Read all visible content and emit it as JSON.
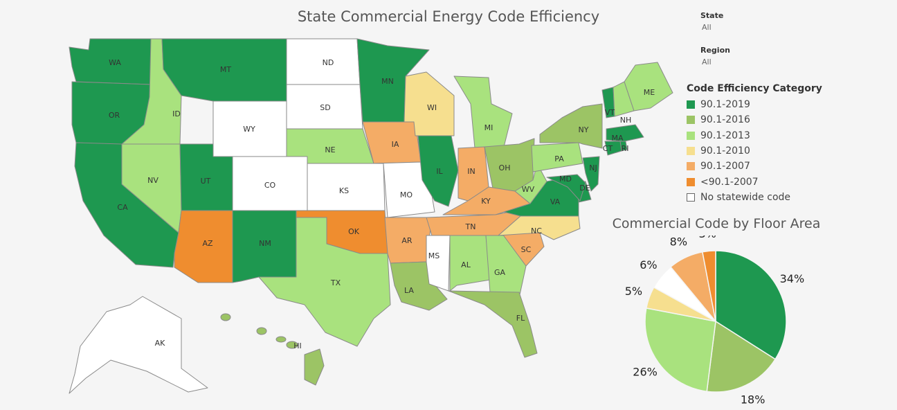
{
  "map_title": "State Commercial Energy Code Efficiency",
  "filters": [
    {
      "label": "State",
      "value": "All"
    },
    {
      "label": "Region",
      "value": "All"
    }
  ],
  "legend": {
    "title": "Code Efficiency Category",
    "items": [
      {
        "label": "90.1-2019",
        "color": "#1e9850"
      },
      {
        "label": "90.1-2016",
        "color": "#9cc465"
      },
      {
        "label": "90.1-2013",
        "color": "#a9e27e"
      },
      {
        "label": "90.1-2010",
        "color": "#f6df8f"
      },
      {
        "label": "90.1-2007",
        "color": "#f4ac66"
      },
      {
        "label": "<90.1-2007",
        "color": "#ef8d2f"
      },
      {
        "label": "No statewide code",
        "color": "#ffffff"
      }
    ]
  },
  "states": [
    {
      "abbr": "WA",
      "category": "90.1-2019"
    },
    {
      "abbr": "OR",
      "category": "90.1-2019"
    },
    {
      "abbr": "CA",
      "category": "90.1-2019"
    },
    {
      "abbr": "ID",
      "category": "90.1-2013"
    },
    {
      "abbr": "NV",
      "category": "90.1-2013"
    },
    {
      "abbr": "MT",
      "category": "90.1-2019"
    },
    {
      "abbr": "WY",
      "category": "No statewide code"
    },
    {
      "abbr": "UT",
      "category": "90.1-2019"
    },
    {
      "abbr": "CO",
      "category": "No statewide code"
    },
    {
      "abbr": "AZ",
      "category": "<90.1-2007"
    },
    {
      "abbr": "NM",
      "category": "90.1-2019"
    },
    {
      "abbr": "ND",
      "category": "No statewide code"
    },
    {
      "abbr": "SD",
      "category": "No statewide code"
    },
    {
      "abbr": "NE",
      "category": "90.1-2013"
    },
    {
      "abbr": "KS",
      "category": "No statewide code"
    },
    {
      "abbr": "OK",
      "category": "<90.1-2007"
    },
    {
      "abbr": "TX",
      "category": "90.1-2013"
    },
    {
      "abbr": "MN",
      "category": "90.1-2019"
    },
    {
      "abbr": "IA",
      "category": "90.1-2007"
    },
    {
      "abbr": "MO",
      "category": "No statewide code"
    },
    {
      "abbr": "AR",
      "category": "90.1-2007"
    },
    {
      "abbr": "LA",
      "category": "90.1-2016"
    },
    {
      "abbr": "WI",
      "category": "90.1-2010"
    },
    {
      "abbr": "IL",
      "category": "90.1-2019"
    },
    {
      "abbr": "MI",
      "category": "90.1-2013"
    },
    {
      "abbr": "IN",
      "category": "90.1-2007"
    },
    {
      "abbr": "OH",
      "category": "90.1-2016"
    },
    {
      "abbr": "KY",
      "category": "90.1-2007"
    },
    {
      "abbr": "TN",
      "category": "90.1-2007"
    },
    {
      "abbr": "MS",
      "category": "No statewide code"
    },
    {
      "abbr": "AL",
      "category": "90.1-2013"
    },
    {
      "abbr": "GA",
      "category": "90.1-2013"
    },
    {
      "abbr": "FL",
      "category": "90.1-2016"
    },
    {
      "abbr": "SC",
      "category": "90.1-2007"
    },
    {
      "abbr": "NC",
      "category": "90.1-2010"
    },
    {
      "abbr": "VA",
      "category": "90.1-2019"
    },
    {
      "abbr": "WV",
      "category": "90.1-2013"
    },
    {
      "abbr": "PA",
      "category": "90.1-2013"
    },
    {
      "abbr": "NY",
      "category": "90.1-2016"
    },
    {
      "abbr": "VT",
      "category": "90.1-2019"
    },
    {
      "abbr": "NH",
      "category": "90.1-2013"
    },
    {
      "abbr": "ME",
      "category": "90.1-2013"
    },
    {
      "abbr": "MA",
      "category": "90.1-2019"
    },
    {
      "abbr": "RI",
      "category": "90.1-2019"
    },
    {
      "abbr": "CT",
      "category": "90.1-2019"
    },
    {
      "abbr": "NJ",
      "category": "90.1-2019"
    },
    {
      "abbr": "DE",
      "category": "90.1-2019"
    },
    {
      "abbr": "MD",
      "category": "90.1-2019"
    },
    {
      "abbr": "AK",
      "category": "No statewide code"
    },
    {
      "abbr": "HI",
      "category": "90.1-2016"
    }
  ],
  "chart_data": {
    "type": "pie",
    "title": "Commercial Code by Floor Area",
    "slices": [
      {
        "label": "90.1-2019",
        "value": 34,
        "display": "34%",
        "color": "#1e9850"
      },
      {
        "label": "90.1-2016",
        "value": 18,
        "display": "18%",
        "color": "#9cc465"
      },
      {
        "label": "90.1-2013",
        "value": 26,
        "display": "26%",
        "color": "#a9e27e"
      },
      {
        "label": "90.1-2010",
        "value": 5,
        "display": "5%",
        "color": "#f6df8f"
      },
      {
        "label": "No statewide code",
        "value": 6,
        "display": "6%",
        "color": "#ffffff"
      },
      {
        "label": "90.1-2007",
        "value": 8,
        "display": "8%",
        "color": "#f4ac66"
      },
      {
        "label": "<90.1-2007",
        "value": 3,
        "display": "3%",
        "color": "#ef8d2f"
      }
    ]
  }
}
